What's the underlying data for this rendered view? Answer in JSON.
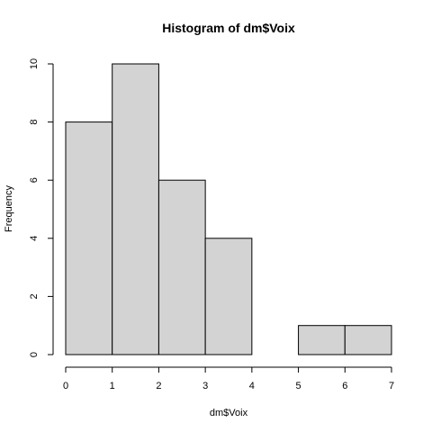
{
  "chart_data": {
    "type": "bar",
    "title": "Histogram of dm$Voix",
    "xlabel": "dm$Voix",
    "ylabel": "Frequency",
    "bins": [
      {
        "from": 0,
        "to": 1,
        "count": 8
      },
      {
        "from": 1,
        "to": 2,
        "count": 10
      },
      {
        "from": 2,
        "to": 3,
        "count": 6
      },
      {
        "from": 3,
        "to": 4,
        "count": 4
      },
      {
        "from": 4,
        "to": 5,
        "count": 0
      },
      {
        "from": 5,
        "to": 6,
        "count": 1
      },
      {
        "from": 6,
        "to": 7,
        "count": 1
      }
    ],
    "xlim": [
      0,
      7
    ],
    "ylim": [
      0,
      10
    ],
    "x_ticks": [
      "0",
      "1",
      "2",
      "3",
      "4",
      "5",
      "6",
      "7"
    ],
    "y_ticks": [
      "0",
      "2",
      "4",
      "6",
      "8",
      "10"
    ],
    "grid": false,
    "bar_fill": "#d3d3d3",
    "bar_stroke": "#000000"
  }
}
